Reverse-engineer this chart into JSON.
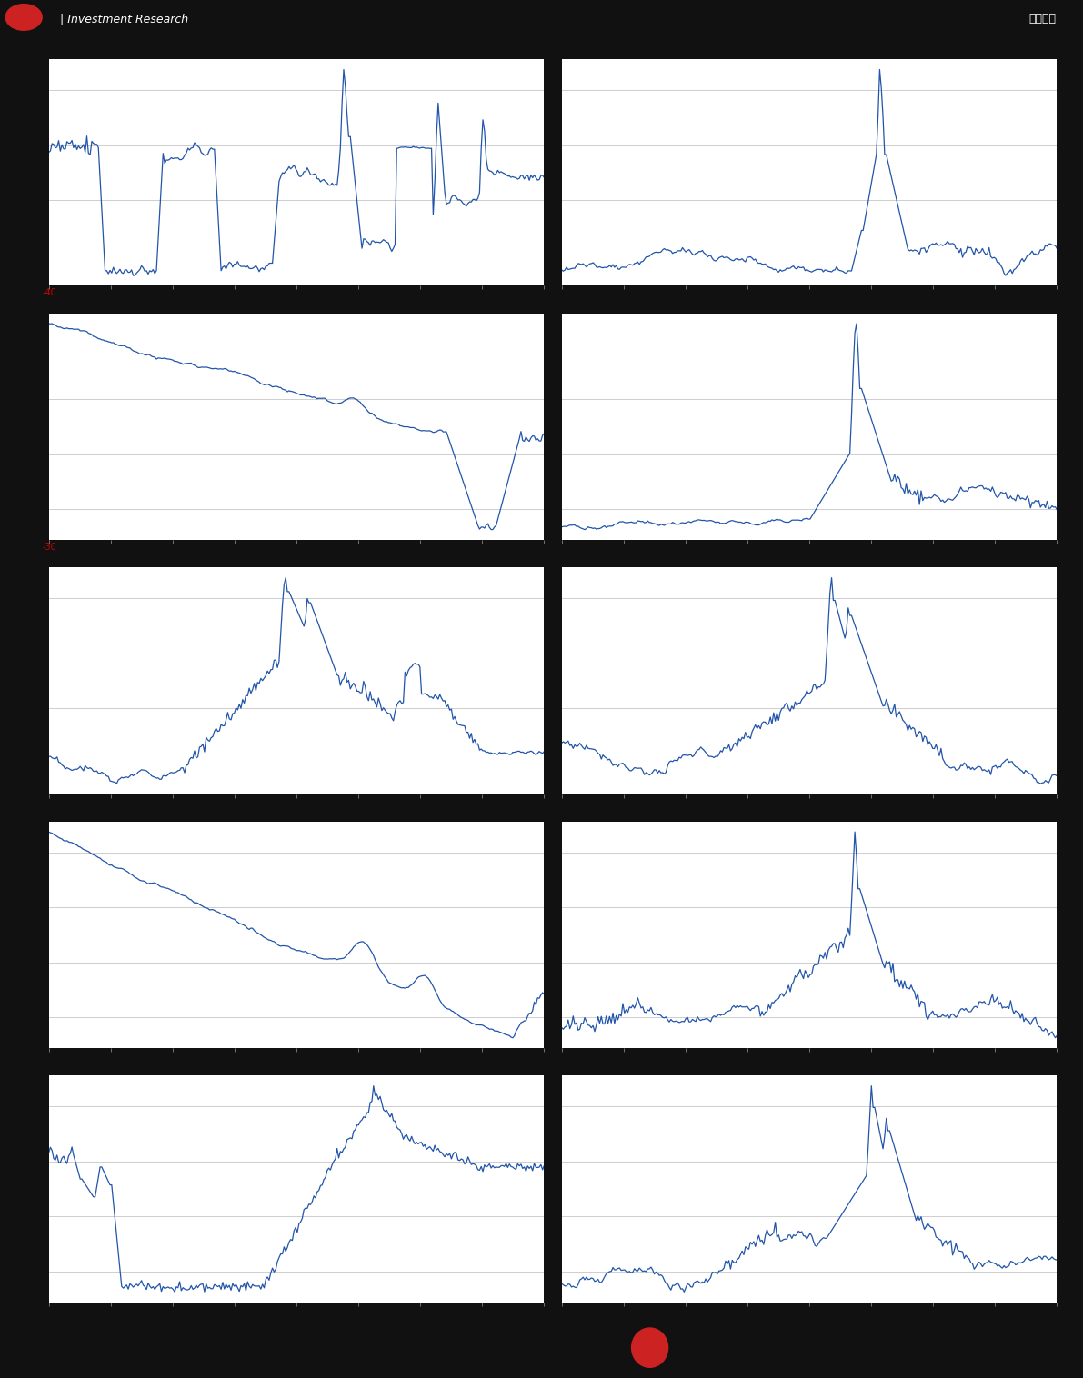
{
  "bg_color": "#111111",
  "chart_bg": "#ffffff",
  "line_color": "#2255aa",
  "line_width": 0.9,
  "grid_color": "#bbbbbb",
  "sep_color": "#555555",
  "header_bg": "#111111",
  "header_line_color": "#1a4a8a",
  "footer_bg": "#111111",
  "content_bg": "#333333",
  "header_text": "| Investment Research",
  "header_right": "估値周报",
  "label_color_red": "#cc0000",
  "n_rows": 5,
  "n_cols": 2,
  "red_labels": {
    "0": "-40",
    "2": "-30"
  }
}
